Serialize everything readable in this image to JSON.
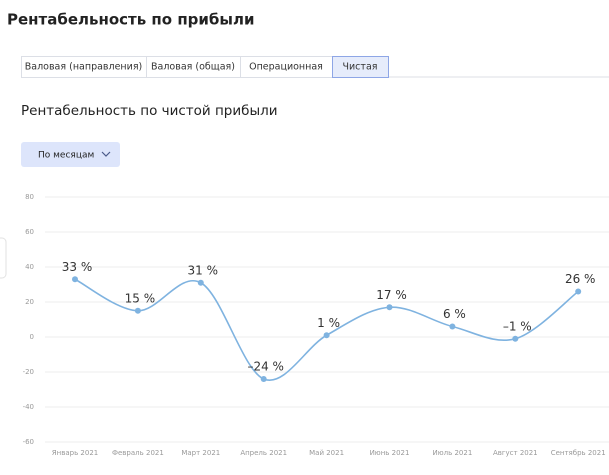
{
  "header": {
    "title": "Рентабельность по прибыли"
  },
  "tabs": {
    "items": [
      "Валовая (направления)",
      "Валовая (общая)",
      "Операционная",
      "Чистая"
    ],
    "active": 3
  },
  "section": {
    "title": "Рентабельность по чистой прибыли"
  },
  "dropdown": {
    "label": "По месяцам"
  },
  "chart_data": {
    "type": "line",
    "categories": [
      "Январь 2021",
      "Февраль 2021",
      "Март 2021",
      "Апрель 2021",
      "Май 2021",
      "Июнь 2021",
      "Июль 2021",
      "Август 2021",
      "Сентябрь 2021"
    ],
    "values": [
      33,
      15,
      31,
      -24,
      1,
      17,
      6,
      -1,
      26
    ],
    "value_labels": [
      "33 %",
      "15 %",
      "31 %",
      "–24 %",
      "1 %",
      "17 %",
      "6 %",
      "–1 %",
      "26 %"
    ],
    "color": "#7fb3e0",
    "ylim": [
      -60,
      80
    ],
    "yticks": [
      -60,
      -40,
      -20,
      0,
      20,
      40,
      60,
      80
    ],
    "grid": true
  }
}
